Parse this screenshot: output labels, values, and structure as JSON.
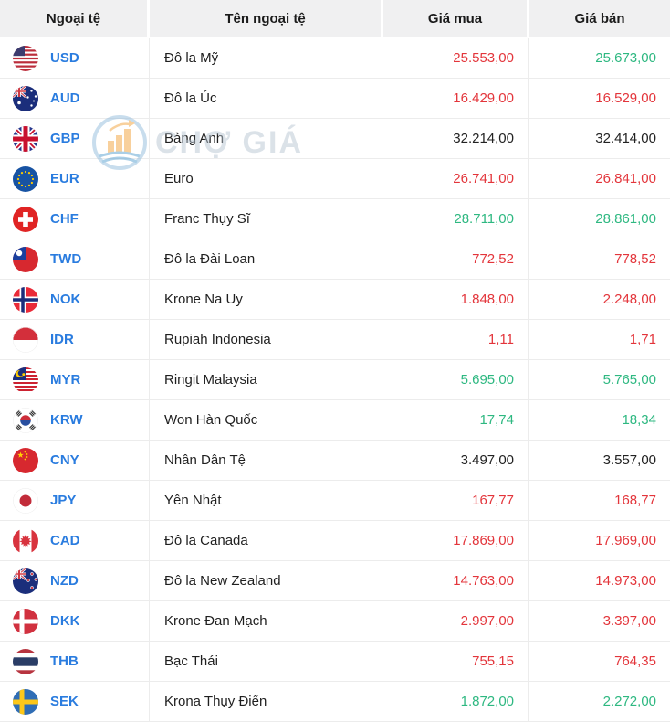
{
  "header": {
    "columns": [
      "Ngoại tệ",
      "Tên ngoại tệ",
      "Giá mua",
      "Giá bán"
    ]
  },
  "watermark": {
    "text": "CHỢ GIÁ",
    "icon": "chart-logo-icon"
  },
  "colors": {
    "red": "#e3353b",
    "green": "#2eb881",
    "neutral": "#222222",
    "code": "#2a7cdf"
  },
  "rows": [
    {
      "code": "USD",
      "flag": "us",
      "name": "Đô la Mỹ",
      "buy": "25.553,00",
      "sell": "25.673,00",
      "buy_color": "red",
      "sell_color": "green"
    },
    {
      "code": "AUD",
      "flag": "au",
      "name": "Đô la Úc",
      "buy": "16.429,00",
      "sell": "16.529,00",
      "buy_color": "red",
      "sell_color": "red"
    },
    {
      "code": "GBP",
      "flag": "gb",
      "name": "Bảng Anh",
      "buy": "32.214,00",
      "sell": "32.414,00",
      "buy_color": "neutral",
      "sell_color": "neutral"
    },
    {
      "code": "EUR",
      "flag": "eu",
      "name": "Euro",
      "buy": "26.741,00",
      "sell": "26.841,00",
      "buy_color": "red",
      "sell_color": "red"
    },
    {
      "code": "CHF",
      "flag": "ch",
      "name": "Franc Thụy Sĩ",
      "buy": "28.711,00",
      "sell": "28.861,00",
      "buy_color": "green",
      "sell_color": "green"
    },
    {
      "code": "TWD",
      "flag": "tw",
      "name": "Đô la Đài Loan",
      "buy": "772,52",
      "sell": "778,52",
      "buy_color": "red",
      "sell_color": "red"
    },
    {
      "code": "NOK",
      "flag": "no",
      "name": "Krone Na Uy",
      "buy": "1.848,00",
      "sell": "2.248,00",
      "buy_color": "red",
      "sell_color": "red"
    },
    {
      "code": "IDR",
      "flag": "id",
      "name": "Rupiah Indonesia",
      "buy": "1,11",
      "sell": "1,71",
      "buy_color": "red",
      "sell_color": "red"
    },
    {
      "code": "MYR",
      "flag": "my",
      "name": "Ringit Malaysia",
      "buy": "5.695,00",
      "sell": "5.765,00",
      "buy_color": "green",
      "sell_color": "green"
    },
    {
      "code": "KRW",
      "flag": "kr",
      "name": "Won Hàn Quốc",
      "buy": "17,74",
      "sell": "18,34",
      "buy_color": "green",
      "sell_color": "green"
    },
    {
      "code": "CNY",
      "flag": "cn",
      "name": "Nhân Dân Tệ",
      "buy": "3.497,00",
      "sell": "3.557,00",
      "buy_color": "neutral",
      "sell_color": "neutral"
    },
    {
      "code": "JPY",
      "flag": "jp",
      "name": "Yên Nhật",
      "buy": "167,77",
      "sell": "168,77",
      "buy_color": "red",
      "sell_color": "red"
    },
    {
      "code": "CAD",
      "flag": "ca",
      "name": "Đô la Canada",
      "buy": "17.869,00",
      "sell": "17.969,00",
      "buy_color": "red",
      "sell_color": "red"
    },
    {
      "code": "NZD",
      "flag": "nz",
      "name": "Đô la New Zealand",
      "buy": "14.763,00",
      "sell": "14.973,00",
      "buy_color": "red",
      "sell_color": "red"
    },
    {
      "code": "DKK",
      "flag": "dk",
      "name": "Krone Đan Mạch",
      "buy": "2.997,00",
      "sell": "3.397,00",
      "buy_color": "red",
      "sell_color": "red"
    },
    {
      "code": "THB",
      "flag": "th",
      "name": "Bạc Thái",
      "buy": "755,15",
      "sell": "764,35",
      "buy_color": "red",
      "sell_color": "red"
    },
    {
      "code": "SEK",
      "flag": "se",
      "name": "Krona Thụy Điển",
      "buy": "1.872,00",
      "sell": "2.272,00",
      "buy_color": "green",
      "sell_color": "green"
    }
  ]
}
